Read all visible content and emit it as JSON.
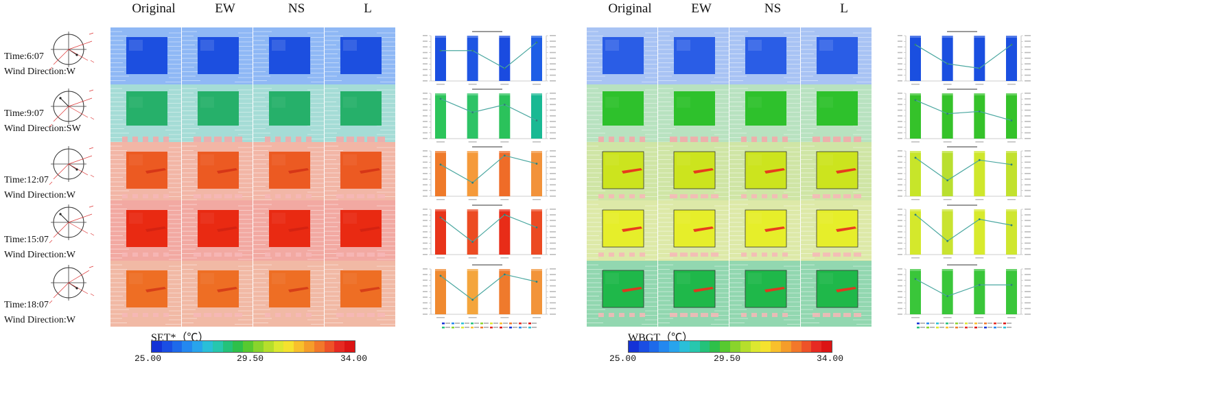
{
  "headers": {
    "left": [
      "Original",
      "EW",
      "NS",
      "L"
    ],
    "right": [
      "Original",
      "EW",
      "NS",
      "L"
    ]
  },
  "rows": [
    {
      "time": "Time:6:07",
      "wind": "Wind Direction:W",
      "set_base": "#8fb8f5",
      "set_core": "#1c4fe0",
      "wb_base": "#a8c3f4",
      "wb_core": "#2a5de6",
      "set_bars": [
        "#1a4fe0",
        "#1e55e3",
        "#1a4be0",
        "#1e5ee6"
      ],
      "wb_bars": [
        "#1a4fe0",
        "#1a4fe0",
        "#1a4fe0",
        "#1a4fe0"
      ],
      "set_line": [
        0.33,
        0.33,
        0.72,
        0.15
      ],
      "wb_line": [
        0.2,
        0.62,
        0.72,
        0.2
      ]
    },
    {
      "time": "Time:9:07",
      "wind": "Wind Direction:SW",
      "set_base": "#a5dcd6",
      "set_core": "#26b06a",
      "wb_base": "#b8e2c0",
      "wb_core": "#2ec12c",
      "set_bars": [
        "#2cc45a",
        "#2dc366",
        "#2bc25b",
        "#19b993"
      ],
      "wb_bars": [
        "#35c22a",
        "#35c22a",
        "#35c22a",
        "#35c22a"
      ],
      "set_line": [
        0.12,
        0.42,
        0.25,
        0.6
      ],
      "wb_line": [
        0.15,
        0.45,
        0.4,
        0.6
      ]
    },
    {
      "time": "Time:12:07",
      "wind": "Wind Direction:W",
      "set_base": "#f2b6a6",
      "set_core": "#ec5a22",
      "wb_base": "#cfe5a5",
      "wb_core": "#cce41e",
      "set_bars": [
        "#ef7a2a",
        "#f59a3a",
        "#ef6c28",
        "#f2923a"
      ],
      "wb_bars": [
        "#c7e52a",
        "#b9df2f",
        "#cfe72c",
        "#c2e12e"
      ],
      "set_line": [
        0.3,
        0.7,
        0.1,
        0.28
      ],
      "wb_line": [
        0.15,
        0.65,
        0.2,
        0.3
      ]
    },
    {
      "time": "Time:15:07",
      "wind": "Wind Direction:W",
      "set_base": "#f2a9a2",
      "set_core": "#e92a12",
      "wb_base": "#dde9a8",
      "wb_core": "#e6ee2a",
      "set_bars": [
        "#e8341a",
        "#ec4b22",
        "#e82c18",
        "#ec4a22"
      ],
      "wb_bars": [
        "#d4e82c",
        "#c9e330",
        "#d8ea2d",
        "#cfe62f"
      ],
      "set_line": [
        0.18,
        0.72,
        0.12,
        0.4
      ],
      "wb_line": [
        0.12,
        0.7,
        0.22,
        0.35
      ]
    },
    {
      "time": "Time:18:07",
      "wind": "Wind Direction:W",
      "set_base": "#f1b9a5",
      "set_core": "#ee6e24",
      "wb_base": "#92d7b0",
      "wb_core": "#1fb84a",
      "set_bars": [
        "#f08a30",
        "#f4a53c",
        "#ef7a2c",
        "#f2943a"
      ],
      "wb_bars": [
        "#3ac63a",
        "#3ac63a",
        "#3ac63a",
        "#3ac63a"
      ],
      "set_line": [
        0.15,
        0.68,
        0.12,
        0.28
      ],
      "wb_line": [
        0.22,
        0.6,
        0.35,
        0.35
      ]
    }
  ],
  "scales": {
    "set": {
      "title": "SET*（℃）",
      "min": "25.00",
      "mid": "29.50",
      "max": "34.00"
    },
    "wbgt": {
      "title": "WBGT（℃）",
      "min": "25.00",
      "mid": "29.50",
      "max": "34.00"
    }
  },
  "legend_colors": [
    "#1432d6",
    "#1a4ee3",
    "#1e6aea",
    "#2488ef",
    "#28a4ec",
    "#2abfd8",
    "#27c7ae",
    "#24c27a",
    "#2ec04a",
    "#57c930",
    "#89d42c",
    "#b6de2c",
    "#dce830",
    "#f5e22e",
    "#f8c02c",
    "#f59d2a",
    "#f2782a",
    "#ee5228",
    "#e62a22",
    "#dc1414"
  ]
}
